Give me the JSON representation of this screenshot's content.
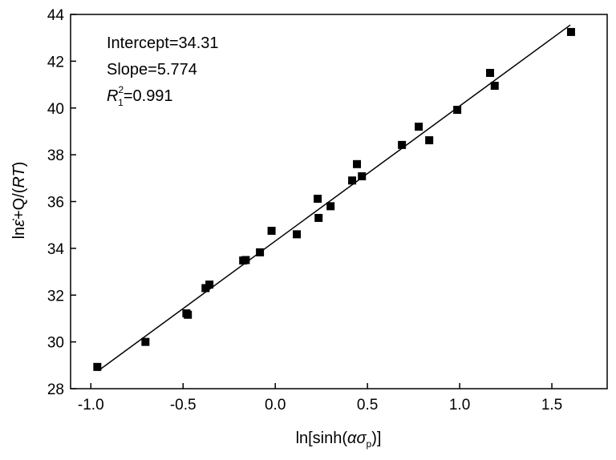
{
  "chart_data": {
    "type": "scatter",
    "xlabel": "ln[sinh(ασp)]",
    "xlabel_parts": {
      "prefix": "ln[sinh(",
      "alpha": "α",
      "sigma": "σ",
      "sub": "p",
      "suffix": ")]"
    },
    "ylabel": "lnε̇+Q/(RT)",
    "ylabel_parts": {
      "prefix": "ln",
      "epsilon": "ε̇",
      "mid": "+Q/(",
      "rt": "RT",
      "suffix": ")"
    },
    "xlim": [
      -1.11,
      1.8
    ],
    "ylim": [
      28,
      44
    ],
    "xticks": [
      -1.0,
      -0.5,
      0.0,
      0.5,
      1.0,
      1.5
    ],
    "xtick_labels": [
      "-1.0",
      "-0.5",
      "0.0",
      "0.5",
      "1.0",
      "1.5"
    ],
    "yticks": [
      28,
      30,
      32,
      34,
      36,
      38,
      40,
      42,
      44
    ],
    "ytick_labels": [
      "28",
      "30",
      "32",
      "34",
      "36",
      "38",
      "40",
      "42",
      "44"
    ],
    "grid": false,
    "marker": "square",
    "color": "#000000",
    "points": [
      {
        "x": -0.965,
        "y": 28.93
      },
      {
        "x": -0.704,
        "y": 30.0
      },
      {
        "x": -0.482,
        "y": 31.22
      },
      {
        "x": -0.474,
        "y": 31.16
      },
      {
        "x": -0.378,
        "y": 32.3
      },
      {
        "x": -0.357,
        "y": 32.45
      },
      {
        "x": -0.174,
        "y": 33.48
      },
      {
        "x": -0.16,
        "y": 33.5
      },
      {
        "x": -0.083,
        "y": 33.83
      },
      {
        "x": -0.02,
        "y": 34.75
      },
      {
        "x": 0.117,
        "y": 34.6
      },
      {
        "x": 0.23,
        "y": 36.12
      },
      {
        "x": 0.235,
        "y": 35.3
      },
      {
        "x": 0.3,
        "y": 35.8
      },
      {
        "x": 0.417,
        "y": 36.9
      },
      {
        "x": 0.443,
        "y": 37.6
      },
      {
        "x": 0.47,
        "y": 37.08
      },
      {
        "x": 0.687,
        "y": 38.42
      },
      {
        "x": 0.778,
        "y": 39.2
      },
      {
        "x": 0.835,
        "y": 38.62
      },
      {
        "x": 0.987,
        "y": 39.92
      },
      {
        "x": 1.165,
        "y": 41.5
      },
      {
        "x": 1.19,
        "y": 40.95
      },
      {
        "x": 1.604,
        "y": 43.25
      }
    ],
    "fit": {
      "intercept": 34.31,
      "slope": 5.774,
      "x_range": [
        -0.96,
        1.6
      ]
    },
    "annotations": {
      "intercept": "Intercept=34.31",
      "slope": "Slope=5.774",
      "r2_symbol": "R",
      "r2_sup": "2",
      "r2_sub": "1",
      "r2_value": "=0.991"
    }
  }
}
